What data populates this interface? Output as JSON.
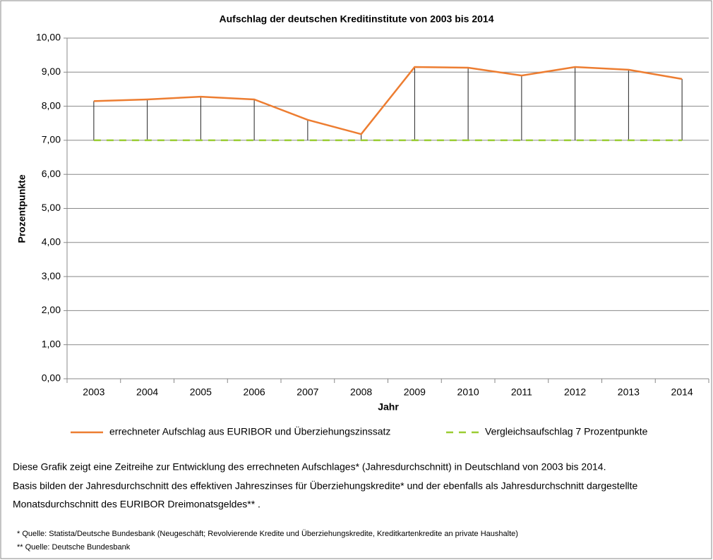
{
  "chart_data": {
    "type": "line",
    "title": "Aufschlag der deutschen Kreditinstitute von 2003 bis 2014",
    "x_label": "Jahr",
    "y_label": "Prozentpunkte",
    "categories": [
      "2003",
      "2004",
      "2005",
      "2006",
      "2007",
      "2008",
      "2009",
      "2010",
      "2011",
      "2012",
      "2013",
      "2014"
    ],
    "series": [
      {
        "name": "errechneter Aufschlag aus EURIBOR und Überziehungszinssatz",
        "color": "#ed7d31",
        "dash": false,
        "values": [
          8.15,
          8.2,
          8.28,
          8.2,
          7.6,
          7.18,
          9.15,
          9.13,
          8.9,
          9.15,
          9.07,
          8.8
        ]
      },
      {
        "name": "Vergleichsaufschlag 7 Prozentpunkte",
        "color": "#9acd32",
        "dash": true,
        "values": [
          7,
          7,
          7,
          7,
          7,
          7,
          7,
          7,
          7,
          7,
          7,
          7
        ]
      }
    ],
    "drop_lines": true,
    "ylim": [
      0,
      10
    ],
    "yticks": [
      {
        "value": 0,
        "label": "0,00"
      },
      {
        "value": 1,
        "label": "1,00"
      },
      {
        "value": 2,
        "label": "2,00"
      },
      {
        "value": 3,
        "label": "3,00"
      },
      {
        "value": 4,
        "label": "4,00"
      },
      {
        "value": 5,
        "label": "5,00"
      },
      {
        "value": 6,
        "label": "6,00"
      },
      {
        "value": 7,
        "label": "7,00"
      },
      {
        "value": 8,
        "label": "8,00"
      },
      {
        "value": 9,
        "label": "9,00"
      },
      {
        "value": 10,
        "label": "10,00"
      }
    ],
    "grid": true,
    "legend": "bottom"
  },
  "notes": [
    "Diese Grafik zeigt eine Zeitreihe zur Entwicklung  des errechneten Aufschlages* (Jahresdurchschnitt) in Deutschland von 2003 bis 2014.",
    "Basis bilden  der Jahresdurchschnitt des effektiven Jahreszinses für Überziehungskredite*  und der ebenfalls als Jahresdurchschnitt dargestellte",
    "Monatsdurchschnitt des EURIBOR Dreimonatsgeldes** ."
  ],
  "footnotes": [
    "* Quelle: Statista/Deutsche Bundesbank (Neugeschäft; Revolvierende Kredite und Überziehungskredite, Kreditkartenkredite an private Haushalte)",
    "** Quelle: Deutsche Bundesbank"
  ]
}
